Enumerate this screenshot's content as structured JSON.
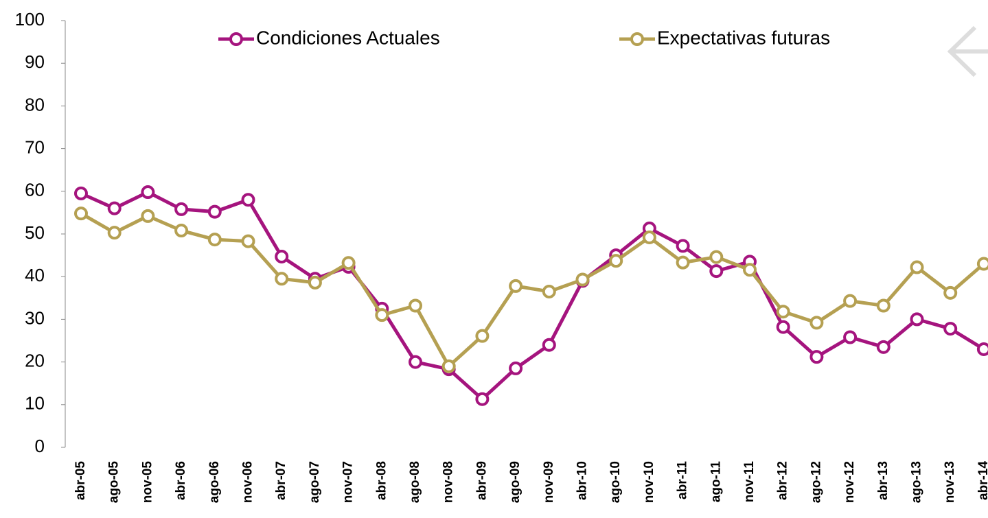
{
  "chart_data": {
    "type": "line",
    "categories": [
      "abr-05",
      "ago-05",
      "nov-05",
      "abr-06",
      "ago-06",
      "nov-06",
      "abr-07",
      "ago-07",
      "nov-07",
      "abr-08",
      "ago-08",
      "nov-08",
      "abr-09",
      "ago-09",
      "nov-09",
      "abr-10",
      "ago-10",
      "nov-10",
      "abr-11",
      "ago-11",
      "nov-11",
      "abr-12",
      "ago-12",
      "nov-12",
      "abr-13",
      "ago-13",
      "nov-13",
      "abr-14"
    ],
    "series": [
      {
        "name": "Condiciones Actuales",
        "color": "#a5147e",
        "values": [
          59.5,
          56,
          59.8,
          55.8,
          55.2,
          58,
          44.7,
          39.5,
          42.3,
          32.5,
          20,
          18.3,
          11.3,
          18.5,
          24,
          39,
          45,
          51.3,
          47.2,
          41.3,
          43.5,
          28.2,
          21.2,
          25.8,
          23.5,
          30,
          27.8,
          23
        ]
      },
      {
        "name": "Expectativas futuras",
        "color": "#b5a052",
        "values": [
          54.8,
          50.3,
          54.2,
          50.8,
          48.7,
          48.3,
          39.5,
          38.6,
          43.2,
          31,
          33.2,
          19,
          26.1,
          37.8,
          36.5,
          39.3,
          43.7,
          49.2,
          43.3,
          44.6,
          41.6,
          31.8,
          29.2,
          34.3,
          33.2,
          42.2,
          36.2,
          43
        ]
      }
    ],
    "ylim": [
      0,
      100
    ],
    "yticks": [
      0,
      10,
      20,
      30,
      40,
      50,
      60,
      70,
      80,
      90,
      100
    ],
    "grid": false
  }
}
